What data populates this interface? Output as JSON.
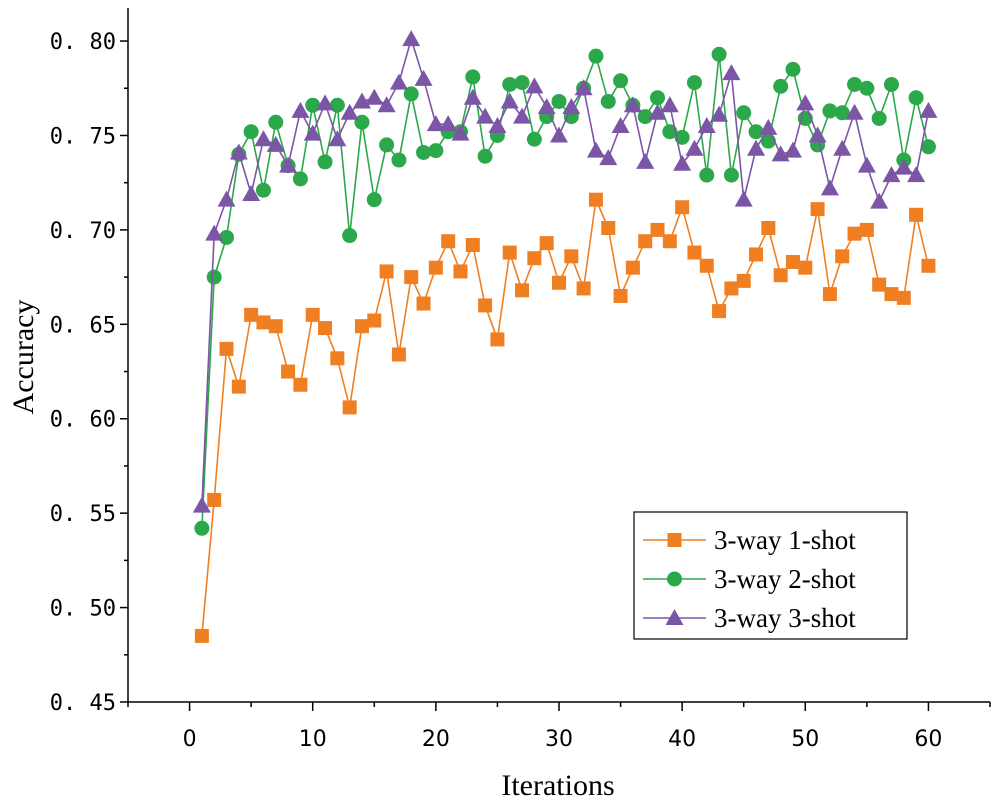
{
  "chart_data": {
    "type": "line",
    "title": "",
    "xlabel": "Iterations",
    "ylabel": "Accuracy",
    "xlim": [
      -5,
      65
    ],
    "ylim": [
      0.45,
      0.8175
    ],
    "x_ticks": [
      0,
      10,
      20,
      30,
      40,
      50,
      60
    ],
    "y_ticks": [
      0.45,
      0.5,
      0.55,
      0.6,
      0.65,
      0.7,
      0.75,
      0.8
    ],
    "y_tick_labels": [
      "0. 45",
      "0. 50",
      "0. 55",
      "0. 60",
      "0. 65",
      "0. 70",
      "0. 75",
      "0. 80"
    ],
    "legend_position": "lower-right",
    "x": [
      1,
      2,
      3,
      4,
      5,
      6,
      7,
      8,
      9,
      10,
      11,
      12,
      13,
      14,
      15,
      16,
      17,
      18,
      19,
      20,
      21,
      22,
      23,
      24,
      25,
      26,
      27,
      28,
      29,
      30,
      31,
      32,
      33,
      34,
      35,
      36,
      37,
      38,
      39,
      40,
      41,
      42,
      43,
      44,
      45,
      46,
      47,
      48,
      49,
      50,
      51,
      52,
      53,
      54,
      55,
      56,
      57,
      58,
      59,
      60
    ],
    "series": [
      {
        "name": "3-way 1-shot",
        "color": "#F07F22",
        "marker": "square",
        "values": [
          0.485,
          0.557,
          0.637,
          0.617,
          0.655,
          0.651,
          0.649,
          0.625,
          0.618,
          0.655,
          0.648,
          0.632,
          0.606,
          0.649,
          0.652,
          0.678,
          0.634,
          0.675,
          0.661,
          0.68,
          0.694,
          0.678,
          0.692,
          0.66,
          0.642,
          0.688,
          0.668,
          0.685,
          0.693,
          0.672,
          0.686,
          0.669,
          0.716,
          0.701,
          0.665,
          0.68,
          0.694,
          0.7,
          0.694,
          0.712,
          0.688,
          0.681,
          0.657,
          0.669,
          0.673,
          0.687,
          0.701,
          0.676,
          0.683,
          0.68,
          0.711,
          0.666,
          0.686,
          0.698,
          0.7,
          0.671,
          0.666,
          0.664,
          0.708,
          0.681
        ]
      },
      {
        "name": "3-way 2-shot",
        "color": "#2BA84A",
        "marker": "circle",
        "values": [
          0.542,
          0.675,
          0.696,
          0.74,
          0.752,
          0.721,
          0.757,
          0.734,
          0.727,
          0.766,
          0.736,
          0.766,
          0.697,
          0.757,
          0.716,
          0.745,
          0.737,
          0.772,
          0.741,
          0.742,
          0.752,
          0.752,
          0.781,
          0.739,
          0.75,
          0.777,
          0.778,
          0.748,
          0.76,
          0.768,
          0.76,
          0.775,
          0.792,
          0.768,
          0.779,
          0.766,
          0.76,
          0.77,
          0.752,
          0.749,
          0.778,
          0.729,
          0.793,
          0.729,
          0.762,
          0.752,
          0.747,
          0.776,
          0.785,
          0.759,
          0.745,
          0.763,
          0.762,
          0.777,
          0.775,
          0.759,
          0.777,
          0.737,
          0.77,
          0.744
        ]
      },
      {
        "name": "3-way 3-shot",
        "color": "#7B56A6",
        "marker": "triangle",
        "values": [
          0.554,
          0.698,
          0.716,
          0.741,
          0.719,
          0.748,
          0.745,
          0.734,
          0.763,
          0.751,
          0.767,
          0.748,
          0.762,
          0.768,
          0.77,
          0.766,
          0.778,
          0.801,
          0.78,
          0.756,
          0.756,
          0.751,
          0.77,
          0.76,
          0.755,
          0.768,
          0.76,
          0.776,
          0.765,
          0.75,
          0.765,
          0.775,
          0.742,
          0.738,
          0.755,
          0.766,
          0.736,
          0.762,
          0.766,
          0.735,
          0.743,
          0.755,
          0.761,
          0.783,
          0.716,
          0.743,
          0.754,
          0.74,
          0.742,
          0.767,
          0.75,
          0.722,
          0.743,
          0.762,
          0.734,
          0.715,
          0.729,
          0.733,
          0.729,
          0.763
        ]
      }
    ]
  }
}
